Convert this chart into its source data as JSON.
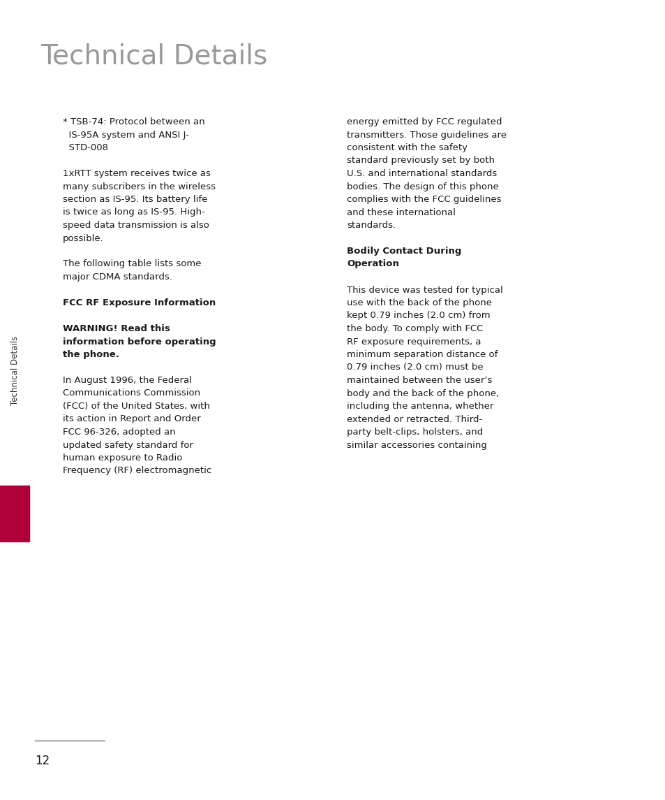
{
  "bg_color": "#ffffff",
  "title": "Technical Details",
  "title_color": "#999999",
  "title_fontsize": 28,
  "body_color": "#1a1a1a",
  "body_fontsize": 9.5,
  "sidebar_bar_color": "#b0003a",
  "page_number": "12",
  "left_col_lines": [
    {
      "text": "* TSB-74: Protocol between an",
      "bold": false,
      "indent": false
    },
    {
      "text": "  IS-95A system and ANSI J-",
      "bold": false,
      "indent": false
    },
    {
      "text": "  STD-008",
      "bold": false,
      "indent": false
    },
    {
      "text": "",
      "bold": false,
      "indent": false
    },
    {
      "text": "1xRTT system receives twice as",
      "bold": false,
      "indent": false
    },
    {
      "text": "many subscribers in the wireless",
      "bold": false,
      "indent": false
    },
    {
      "text": "section as IS-95. Its battery life",
      "bold": false,
      "indent": false
    },
    {
      "text": "is twice as long as IS-95. High-",
      "bold": false,
      "indent": false
    },
    {
      "text": "speed data transmission is also",
      "bold": false,
      "indent": false
    },
    {
      "text": "possible.",
      "bold": false,
      "indent": false
    },
    {
      "text": "",
      "bold": false,
      "indent": false
    },
    {
      "text": "The following table lists some",
      "bold": false,
      "indent": false
    },
    {
      "text": "major CDMA standards.",
      "bold": false,
      "indent": false
    },
    {
      "text": "",
      "bold": false,
      "indent": false
    },
    {
      "text": "FCC RF Exposure Information",
      "bold": true,
      "indent": false
    },
    {
      "text": "",
      "bold": false,
      "indent": false
    },
    {
      "text": "WARNING! Read this",
      "bold": true,
      "indent": false
    },
    {
      "text": "information before operating",
      "bold": true,
      "indent": false
    },
    {
      "text": "the phone.",
      "bold": true,
      "indent": false
    },
    {
      "text": "",
      "bold": false,
      "indent": false
    },
    {
      "text": "In August 1996, the Federal",
      "bold": false,
      "indent": false
    },
    {
      "text": "Communications Commission",
      "bold": false,
      "indent": false
    },
    {
      "text": "(FCC) of the United States, with",
      "bold": false,
      "indent": false
    },
    {
      "text": "its action in Report and Order",
      "bold": false,
      "indent": false
    },
    {
      "text": "FCC 96-326, adopted an",
      "bold": false,
      "indent": false
    },
    {
      "text": "updated safety standard for",
      "bold": false,
      "indent": false
    },
    {
      "text": "human exposure to Radio",
      "bold": false,
      "indent": false
    },
    {
      "text": "Frequency (RF) electromagnetic",
      "bold": false,
      "indent": false
    }
  ],
  "right_col_lines": [
    {
      "text": "energy emitted by FCC regulated",
      "bold": false
    },
    {
      "text": "transmitters. Those guidelines are",
      "bold": false
    },
    {
      "text": "consistent with the safety",
      "bold": false
    },
    {
      "text": "standard previously set by both",
      "bold": false
    },
    {
      "text": "U.S. and international standards",
      "bold": false
    },
    {
      "text": "bodies. The design of this phone",
      "bold": false
    },
    {
      "text": "complies with the FCC guidelines",
      "bold": false
    },
    {
      "text": "and these international",
      "bold": false
    },
    {
      "text": "standards.",
      "bold": false
    },
    {
      "text": "",
      "bold": false
    },
    {
      "text": "Bodily Contact During",
      "bold": true
    },
    {
      "text": "Operation",
      "bold": true
    },
    {
      "text": "",
      "bold": false
    },
    {
      "text": "This device was tested for typical",
      "bold": false
    },
    {
      "text": "use with the back of the phone",
      "bold": false
    },
    {
      "text": "kept 0.79 inches (2.0 cm) from",
      "bold": false
    },
    {
      "text": "the body. To comply with FCC",
      "bold": false
    },
    {
      "text": "RF exposure requirements, a",
      "bold": false
    },
    {
      "text": "minimum separation distance of",
      "bold": false
    },
    {
      "text": "0.79 inches (2.0 cm) must be",
      "bold": false
    },
    {
      "text": "maintained between the user’s",
      "bold": false
    },
    {
      "text": "body and the back of the phone,",
      "bold": false
    },
    {
      "text": "including the antenna, whether",
      "bold": false
    },
    {
      "text": "extended or retracted. Third-",
      "bold": false
    },
    {
      "text": "party belt-clips, holsters, and",
      "bold": false
    },
    {
      "text": "similar accessories containing",
      "bold": false
    }
  ]
}
